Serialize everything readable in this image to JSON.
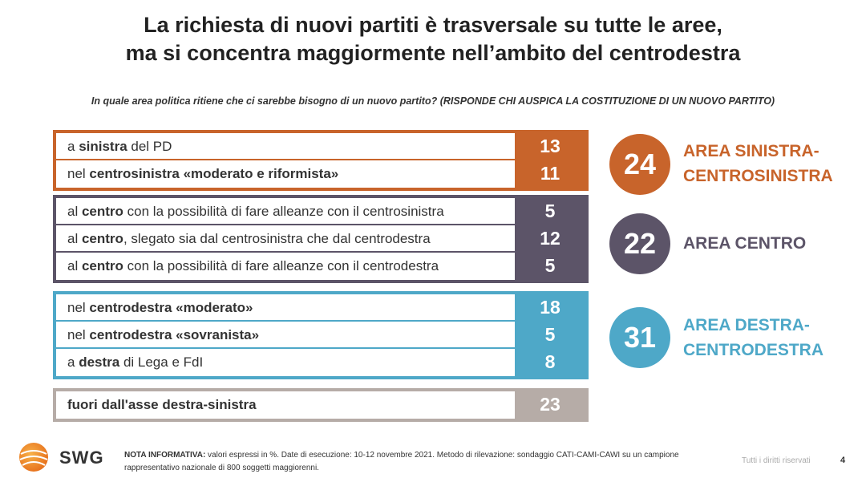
{
  "title": {
    "line1": "La richiesta di nuovi partiti è trasversale su tutte le aree,",
    "line2": "ma si concentra maggiormente nell’ambito del centrodestra"
  },
  "question": "In quale area politica ritiene che ci sarebbe bisogno di un nuovo partito? (RISPONDE CHI AUSPICA LA COSTITUZIONE DI UN NUOVO PARTITO)",
  "chart_data": {
    "type": "table",
    "unit": "%",
    "rows": [
      {
        "group": "sinistra",
        "pre": "a ",
        "bold": "sinistra",
        "post": " del PD",
        "value": 13
      },
      {
        "group": "sinistra",
        "pre": "nel ",
        "bold": "centrosinistra «moderato e riformista»",
        "post": "",
        "value": 11
      },
      {
        "group": "centro",
        "pre": "al ",
        "bold": "centro",
        "post": " con la possibilità di fare alleanze con il centrosinistra",
        "value": 5
      },
      {
        "group": "centro",
        "pre": "al ",
        "bold": "centro",
        "post": ", slegato sia dal centrosinistra che dal centrodestra",
        "value": 12
      },
      {
        "group": "centro",
        "pre": "al ",
        "bold": "centro",
        "post": " con la possibilità di fare alleanze con il centrodestra",
        "value": 5
      },
      {
        "group": "destra",
        "pre": "nel ",
        "bold": "centrodestra «moderato»",
        "post": "",
        "value": 18
      },
      {
        "group": "destra",
        "pre": "nel ",
        "bold": "centrodestra «sovranista»",
        "post": "",
        "value": 5
      },
      {
        "group": "destra",
        "pre": "a ",
        "bold": "destra",
        "post": " di Lega e FdI",
        "value": 8
      },
      {
        "group": "fuori",
        "pre": "",
        "bold": "fuori dall'asse destra-sinistra",
        "post": "",
        "value": 23
      }
    ],
    "areas": [
      {
        "value": 24,
        "label_line1": "AREA SINISTRA-",
        "label_line2": "CENTROSINISTRA",
        "color": "#c8642b"
      },
      {
        "value": 22,
        "label_line1": "AREA CENTRO",
        "label_line2": "",
        "color": "#5c5468"
      },
      {
        "value": 31,
        "label_line1": "AREA DESTRA-",
        "label_line2": "CENTRODESTRA",
        "color": "#4ea8c8"
      }
    ],
    "colors": {
      "sinistra": "#c8642b",
      "centro": "#5c5468",
      "destra": "#4ea8c8",
      "fuori": "#b6aca7"
    }
  },
  "footer": {
    "logo": "SWG",
    "nota_bold": "NOTA INFORMATIVA:",
    "nota_text": " valori espressi in %. Date di esecuzione: 10-12 novembre 2021. Metodo di rilevazione: sondaggio CATI-CAMI-CAWI su un campione rappresentativo nazionale di 800 soggetti maggiorenni.",
    "rights": "Tutti i diritti riservati",
    "page": "4"
  }
}
